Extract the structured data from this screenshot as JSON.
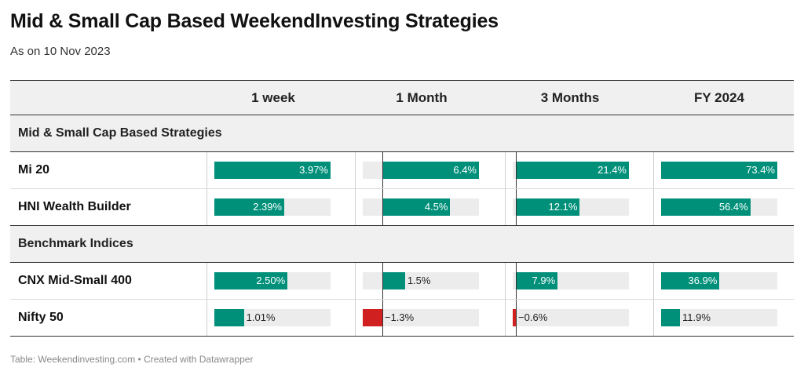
{
  "title": "Mid & Small Cap Based WeekendInvesting Strategies",
  "subtitle": "As on 10 Nov 2023",
  "footer": "Table: Weekendinvesting.com • Created with Datawrapper",
  "colors": {
    "positive": "#00907a",
    "negative": "#d02020",
    "track": "#ececec",
    "header_bg": "#f0f0f0"
  },
  "columns": [
    "1 week",
    "1 Month",
    "3 Months",
    "FY 2024"
  ],
  "column_ranges": [
    [
      0,
      3.97
    ],
    [
      -1.3,
      6.4
    ],
    [
      -0.6,
      21.4
    ],
    [
      0,
      73.4
    ]
  ],
  "groups": [
    {
      "label": "Mid & Small Cap Based Strategies",
      "rows": [
        {
          "name": "Mi 20",
          "values": [
            3.97,
            6.4,
            21.4,
            73.4
          ],
          "labels": [
            "3.97%",
            "6.4%",
            "21.4%",
            "73.4%"
          ]
        },
        {
          "name": "HNI Wealth Builder",
          "values": [
            2.39,
            4.5,
            12.1,
            56.4
          ],
          "labels": [
            "2.39%",
            "4.5%",
            "12.1%",
            "56.4%"
          ]
        }
      ]
    },
    {
      "label": "Benchmark Indices",
      "rows": [
        {
          "name": "CNX Mid-Small 400",
          "values": [
            2.5,
            1.5,
            7.9,
            36.9
          ],
          "labels": [
            "2.50%",
            "1.5%",
            "7.9%",
            "36.9%"
          ]
        },
        {
          "name": "Nifty 50",
          "values": [
            1.01,
            -1.3,
            -0.6,
            11.9
          ],
          "labels": [
            "1.01%",
            "−1.3%",
            "−0.6%",
            "11.9%"
          ]
        }
      ]
    }
  ],
  "chart_data": {
    "type": "table",
    "title": "Mid & Small Cap Based WeekendInvesting Strategies",
    "subtitle": "As on 10 Nov 2023",
    "categories": [
      "Mi 20",
      "HNI Wealth Builder",
      "CNX Mid-Small 400",
      "Nifty 50"
    ],
    "series": [
      {
        "name": "1 week",
        "values": [
          3.97,
          2.39,
          2.5,
          1.01
        ]
      },
      {
        "name": "1 Month",
        "values": [
          6.4,
          4.5,
          1.5,
          -1.3
        ]
      },
      {
        "name": "3 Months",
        "values": [
          21.4,
          12.1,
          7.9,
          -0.6
        ]
      },
      {
        "name": "FY 2024",
        "values": [
          73.4,
          56.4,
          36.9,
          11.9
        ]
      }
    ]
  }
}
